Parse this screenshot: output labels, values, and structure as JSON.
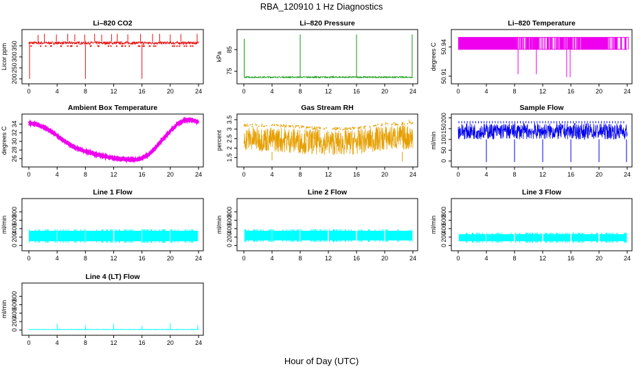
{
  "figure_title": "RBA_120910  1 Hz Diagnostics",
  "x_axis_label": "Hour of Day (UTC)",
  "chart_data": [
    {
      "id": "co2",
      "type": "line",
      "title": "Li–820 CO2",
      "ylabel": "Licor ppm",
      "color": "#e41010",
      "x_range": [
        0,
        24
      ],
      "y_range": [
        190,
        412
      ],
      "x_ticks": [
        0,
        4,
        8,
        12,
        16,
        20,
        24
      ],
      "y_ticks": [
        200,
        250,
        300,
        350
      ],
      "baseline": {
        "low": 357,
        "high": 370
      },
      "spikes": [
        {
          "x": 1.3,
          "y": 400
        },
        {
          "x": 2.2,
          "y": 405
        },
        {
          "x": 3.9,
          "y": 402
        },
        {
          "x": 5.5,
          "y": 405
        },
        {
          "x": 6.5,
          "y": 403
        },
        {
          "x": 7.9,
          "y": 402
        },
        {
          "x": 9.3,
          "y": 405
        },
        {
          "x": 10.3,
          "y": 402
        },
        {
          "x": 11.7,
          "y": 404
        },
        {
          "x": 12.5,
          "y": 405
        },
        {
          "x": 14.0,
          "y": 403
        },
        {
          "x": 15.8,
          "y": 404
        },
        {
          "x": 17.5,
          "y": 405
        },
        {
          "x": 18.5,
          "y": 405
        },
        {
          "x": 20.0,
          "y": 402
        },
        {
          "x": 21.5,
          "y": 404
        },
        {
          "x": 23.8,
          "y": 405
        }
      ],
      "dips": [
        {
          "x": 0.1,
          "y": 200
        },
        {
          "x": 8.0,
          "y": 200
        },
        {
          "x": 16.0,
          "y": 200
        }
      ]
    },
    {
      "id": "pressure",
      "type": "line",
      "title": "Li–820 Pressure",
      "ylabel": "kPa",
      "color": "#119911",
      "x_range": [
        0,
        24
      ],
      "y_range": [
        70.5,
        93
      ],
      "x_ticks": [
        0,
        4,
        8,
        12,
        16,
        20,
        24
      ],
      "y_ticks": [
        75,
        85
      ],
      "baseline": {
        "low": 72.0,
        "high": 72.6
      },
      "spikes": [
        {
          "x": 0.05,
          "y": 90
        },
        {
          "x": 8.0,
          "y": 92
        },
        {
          "x": 16.0,
          "y": 92
        },
        {
          "x": 23.9,
          "y": 92
        }
      ],
      "dips": []
    },
    {
      "id": "li820temp",
      "type": "line",
      "title": "Li–820 Temperature",
      "ylabel": "degrees C",
      "color": "#ee00ee",
      "x_range": [
        0,
        24
      ],
      "y_range": [
        50.905,
        50.955
      ],
      "x_ticks": [
        0,
        4,
        8,
        12,
        16,
        20,
        24
      ],
      "y_ticks": [
        50.91,
        50.94
      ],
      "levels": {
        "low": 50.9375,
        "high": 50.9498
      },
      "fill_until": 21.3,
      "top_until": 24.5
    },
    {
      "id": "ambtemp",
      "type": "line",
      "title": "Ambient Box Temperature",
      "ylabel": "degrees C",
      "color": "#ee00ee",
      "x_range": [
        0,
        24
      ],
      "y_range": [
        24.7,
        35.7
      ],
      "x_ticks": [
        0,
        4,
        8,
        12,
        16,
        20,
        24
      ],
      "y_ticks": [
        26,
        28,
        30,
        32,
        34
      ],
      "curve": [
        [
          0,
          34.2
        ],
        [
          1,
          34.0
        ],
        [
          2,
          33.4
        ],
        [
          3,
          32.5
        ],
        [
          4,
          31.3
        ],
        [
          5,
          30.1
        ],
        [
          6,
          29.0
        ],
        [
          7,
          28.3
        ],
        [
          8,
          27.7
        ],
        [
          9,
          27.2
        ],
        [
          10,
          26.8
        ],
        [
          11,
          26.4
        ],
        [
          12,
          26.1
        ],
        [
          13,
          25.95
        ],
        [
          14,
          25.85
        ],
        [
          15,
          25.75
        ],
        [
          15.5,
          25.8
        ],
        [
          16,
          26.0
        ],
        [
          17,
          27.0
        ],
        [
          18,
          28.7
        ],
        [
          19,
          30.6
        ],
        [
          20,
          32.4
        ],
        [
          21,
          34.0
        ],
        [
          22,
          34.9
        ],
        [
          23,
          35.0
        ],
        [
          24,
          34.5
        ]
      ],
      "noise": 0.35
    },
    {
      "id": "rh",
      "type": "line",
      "title": "Gas Stream RH",
      "ylabel": "percent",
      "color": "#e69f00",
      "x_range": [
        0,
        24
      ],
      "y_range": [
        1.15,
        3.65
      ],
      "x_ticks": [
        0,
        4,
        8,
        12,
        16,
        20,
        24
      ],
      "y_ticks": [
        1.5,
        2.0,
        2.5,
        3.0,
        3.5
      ],
      "upper": [
        [
          0,
          3.15
        ],
        [
          6,
          3.1
        ],
        [
          10,
          3.0
        ],
        [
          14,
          2.95
        ],
        [
          16,
          3.0
        ],
        [
          20,
          3.2
        ],
        [
          24,
          3.25
        ]
      ],
      "lower": [
        [
          0,
          1.85
        ],
        [
          6,
          1.75
        ],
        [
          10,
          1.65
        ],
        [
          14,
          1.6
        ],
        [
          16,
          1.65
        ],
        [
          20,
          1.85
        ],
        [
          24,
          1.9
        ]
      ]
    },
    {
      "id": "sampleflow",
      "type": "line",
      "title": "Sample Flow",
      "ylabel": "ml/min",
      "color": "#0000ee",
      "x_range": [
        0,
        24
      ],
      "y_range": [
        -15,
        205
      ],
      "x_ticks": [
        0,
        4,
        8,
        12,
        16,
        20,
        24
      ],
      "y_ticks": [
        0,
        50,
        100,
        150,
        200
      ],
      "baseline": {
        "low": 100,
        "high": 175
      },
      "spikes_top": 185,
      "dips": [
        {
          "x": 4.0,
          "y": -5
        },
        {
          "x": 8.0,
          "y": -5
        },
        {
          "x": 12.0,
          "y": -5
        },
        {
          "x": 16.0,
          "y": -5
        },
        {
          "x": 20.0,
          "y": -5
        },
        {
          "x": 23.9,
          "y": -5
        }
      ]
    },
    {
      "id": "line1",
      "type": "line",
      "title": "Line 1 Flow",
      "ylabel": "ml/min",
      "color": "#00ffff",
      "x_range": [
        0,
        24
      ],
      "y_range": [
        -60,
        1050
      ],
      "x_ticks": [
        0,
        4,
        8,
        12,
        16,
        20,
        24
      ],
      "y_ticks": [
        0,
        200,
        400,
        600,
        800
      ],
      "baseline": {
        "low": 100,
        "high": 350
      },
      "gaps": [
        4,
        8,
        12,
        16,
        20
      ]
    },
    {
      "id": "line2",
      "type": "line",
      "title": "Line 2 Flow",
      "ylabel": "ml/min",
      "color": "#00ffff",
      "x_range": [
        0,
        24
      ],
      "y_range": [
        -60,
        1050
      ],
      "x_ticks": [
        0,
        4,
        8,
        12,
        16,
        20,
        24
      ],
      "y_ticks": [
        0,
        200,
        400,
        600,
        800
      ],
      "baseline": {
        "low": 120,
        "high": 350
      },
      "gaps": [
        4,
        8,
        12,
        16,
        20
      ]
    },
    {
      "id": "line3",
      "type": "line",
      "title": "Line 3 Flow",
      "ylabel": "ml/min",
      "color": "#00ffff",
      "x_range": [
        0,
        24
      ],
      "y_range": [
        -60,
        1050
      ],
      "x_ticks": [
        0,
        4,
        8,
        12,
        16,
        20,
        24
      ],
      "y_ticks": [
        0,
        200,
        400,
        600,
        800
      ],
      "baseline": {
        "low": 100,
        "high": 270
      },
      "gaps": [
        4,
        8,
        12,
        16,
        20
      ]
    },
    {
      "id": "line4",
      "type": "line",
      "title": "Line 4 (LT) Flow",
      "ylabel": "ml/min",
      "color": "#00ffff",
      "x_range": [
        0,
        24
      ],
      "y_range": [
        -60,
        1050
      ],
      "x_ticks": [
        0,
        4,
        8,
        12,
        16,
        20,
        24
      ],
      "y_ticks": [
        0,
        200,
        400,
        600,
        800
      ],
      "baseline": {
        "low": 5,
        "high": 20
      },
      "spikes": [
        {
          "x": 4.0,
          "y": 150
        },
        {
          "x": 8.0,
          "y": 110
        },
        {
          "x": 12.0,
          "y": 150
        },
        {
          "x": 16.0,
          "y": 100
        },
        {
          "x": 20.0,
          "y": 160
        },
        {
          "x": 23.9,
          "y": 120
        }
      ]
    }
  ]
}
